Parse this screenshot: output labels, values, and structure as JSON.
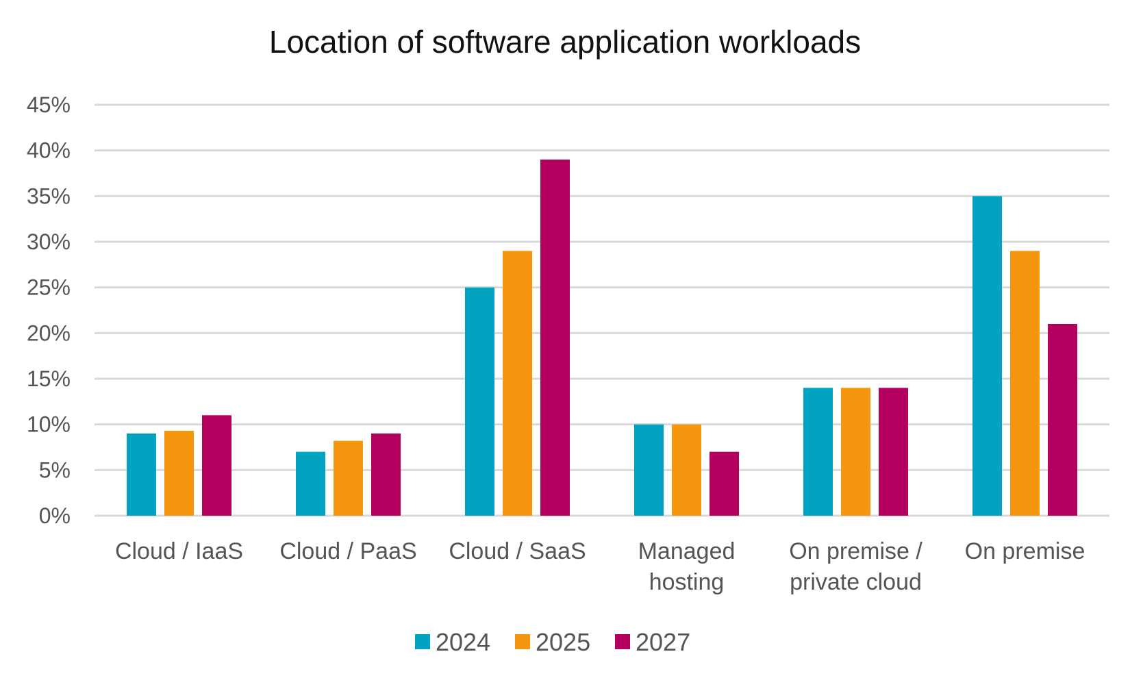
{
  "chart_data": {
    "type": "bar",
    "title": "Location of software application workloads",
    "xlabel": "",
    "ylabel": "",
    "categories": [
      [
        "Cloud / IaaS"
      ],
      [
        "Cloud / PaaS"
      ],
      [
        "Cloud / SaaS"
      ],
      [
        "Managed",
        "hosting"
      ],
      [
        "On premise /",
        "private cloud"
      ],
      [
        "On premise"
      ]
    ],
    "series": [
      {
        "name": "2024",
        "color": "#00a3c0",
        "values": [
          9,
          7,
          25,
          10,
          14,
          35
        ]
      },
      {
        "name": "2025",
        "color": "#f5960f",
        "values": [
          9.3,
          8.2,
          29,
          10,
          14,
          29
        ]
      },
      {
        "name": "2027",
        "color": "#b3005e",
        "values": [
          11,
          9,
          39,
          7,
          14,
          21
        ]
      }
    ],
    "ylim": [
      0,
      45
    ],
    "yticks": [
      "0%",
      "5%",
      "10%",
      "15%",
      "20%",
      "25%",
      "30%",
      "35%",
      "40%",
      "45%"
    ],
    "grid": true,
    "legend_position": "bottom"
  }
}
